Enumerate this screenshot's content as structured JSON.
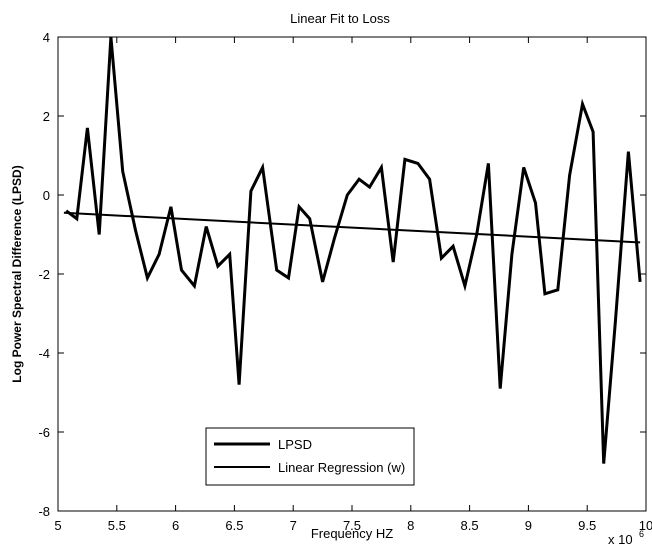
{
  "chart_data": {
    "type": "line",
    "title": "Linear Fit to Loss",
    "xlabel": "Frequency HZ",
    "ylabel": "Log Power Spectral Difference (LPSD)",
    "x_multiplier_label": "x 10",
    "x_multiplier_exponent": "6",
    "xlim": [
      5,
      10
    ],
    "ylim": [
      -8,
      4
    ],
    "xticks": [
      "5",
      "5.5",
      "6",
      "6.5",
      "7",
      "7.5",
      "8",
      "8.5",
      "9",
      "9.5",
      "10"
    ],
    "yticks": [
      "-8",
      "-6",
      "-4",
      "-2",
      "0",
      "2",
      "4"
    ],
    "xtick_values": [
      5,
      5.5,
      6,
      6.5,
      7,
      7.5,
      8,
      8.5,
      9,
      9.5,
      10
    ],
    "ytick_values": [
      -8,
      -6,
      -4,
      -2,
      0,
      2,
      4
    ],
    "grid": false,
    "legend_position": "bottom-center",
    "line_color": "#000000",
    "series": [
      {
        "name": "LPSD",
        "x": [
          5.07,
          5.16,
          5.25,
          5.35,
          5.45,
          5.55,
          5.66,
          5.76,
          5.86,
          5.96,
          6.05,
          6.16,
          6.26,
          6.36,
          6.46,
          6.54,
          6.64,
          6.74,
          6.86,
          6.96,
          7.05,
          7.14,
          7.25,
          7.35,
          7.46,
          7.56,
          7.65,
          7.75,
          7.85,
          7.95,
          8.06,
          8.16,
          8.26,
          8.36,
          8.46,
          8.56,
          8.66,
          8.76,
          8.86,
          8.96,
          9.06,
          9.14,
          9.25,
          9.35,
          9.46,
          9.55,
          9.64,
          9.74,
          9.85,
          9.95
        ],
        "y": [
          -0.4,
          -0.6,
          1.7,
          -1.0,
          4.0,
          0.6,
          -0.9,
          -2.1,
          -1.5,
          -0.3,
          -1.9,
          -2.3,
          -0.8,
          -1.8,
          -1.5,
          -4.8,
          0.1,
          0.7,
          -1.9,
          -2.1,
          -0.3,
          -0.6,
          -2.2,
          -1.1,
          0.0,
          0.4,
          0.2,
          0.7,
          -1.7,
          0.9,
          0.8,
          0.4,
          -1.6,
          -1.3,
          -2.3,
          -1.0,
          0.8,
          -4.9,
          -1.5,
          0.7,
          -0.2,
          -2.5,
          -2.4,
          0.5,
          2.3,
          1.6,
          -6.8,
          -3.2,
          1.1,
          -2.2
        ]
      },
      {
        "name": "Linear Regression (w)",
        "x": [
          5.05,
          9.95
        ],
        "y": [
          -0.45,
          -1.2
        ]
      }
    ]
  }
}
